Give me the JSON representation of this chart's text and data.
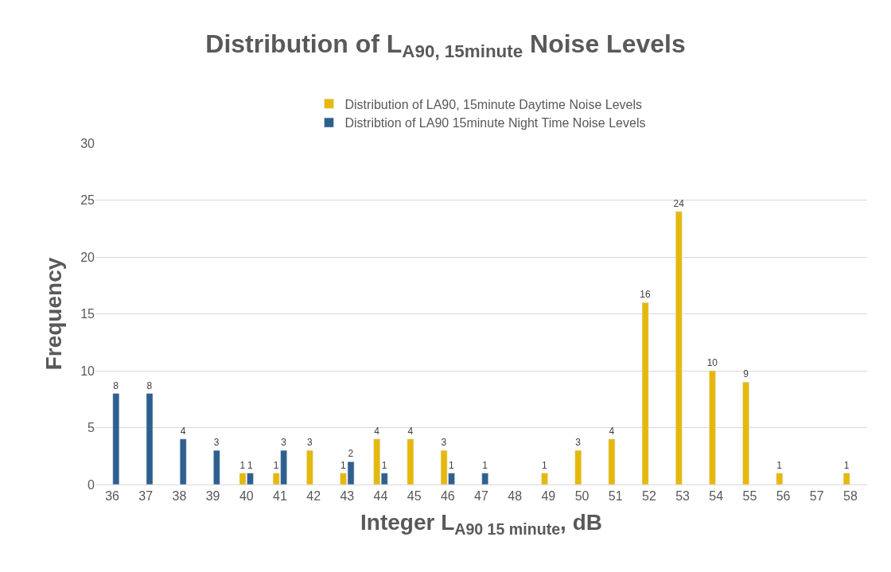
{
  "chart_data": {
    "type": "bar",
    "title": "Distribution of L$_{A90, 15minute}$ Noise Levels",
    "xlabel": "Integer L$_{A90 15 minute}$, dB",
    "ylabel": "Frequency",
    "categories": [
      "36",
      "37",
      "38",
      "39",
      "40",
      "41",
      "42",
      "43",
      "44",
      "45",
      "46",
      "47",
      "48",
      "49",
      "50",
      "51",
      "52",
      "53",
      "54",
      "55",
      "56",
      "57",
      "58"
    ],
    "series": [
      {
        "name": "Distribution of LA90, 15minute Daytime Noise Levels",
        "color": "#e5b80b",
        "values": [
          null,
          null,
          null,
          null,
          1,
          1,
          3,
          1,
          4,
          4,
          3,
          null,
          null,
          1,
          3,
          4,
          16,
          24,
          10,
          9,
          1,
          null,
          1
        ]
      },
      {
        "name": "Distribtion of LA90 15minute Night Time Noise Levels",
        "color": "#2f5f8f",
        "values": [
          8,
          8,
          4,
          3,
          1,
          3,
          null,
          2,
          1,
          null,
          1,
          1,
          null,
          null,
          null,
          null,
          null,
          null,
          null,
          null,
          null,
          null,
          null
        ]
      }
    ],
    "ylim": [
      0,
      30
    ],
    "yticks": [
      0,
      5,
      10,
      15,
      20,
      25,
      30
    ],
    "grid": "y",
    "legend": "top",
    "data_labels": true
  }
}
